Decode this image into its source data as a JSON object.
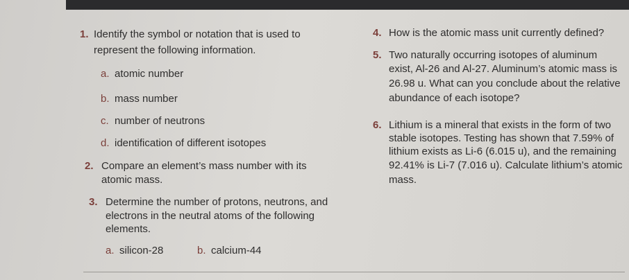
{
  "questions": [
    {
      "number": "1.",
      "lines": [
        "Identify the symbol or notation that is used to",
        "represent the following information."
      ],
      "items": [
        {
          "letter": "a.",
          "text": "atomic number"
        },
        {
          "letter": "b.",
          "text": "mass number"
        },
        {
          "letter": "c.",
          "text": "number of neutrons"
        },
        {
          "letter": "d.",
          "text": "identification of different isotopes"
        }
      ]
    },
    {
      "number": "2.",
      "lines": [
        "Compare an element’s mass number with its",
        "atomic mass."
      ]
    },
    {
      "number": "3.",
      "lines": [
        "Determine the number of protons, neutrons, and",
        "electrons in the neutral atoms of the following",
        "elements."
      ],
      "items": [
        {
          "letter": "a.",
          "text": "silicon-28"
        },
        {
          "letter": "b.",
          "text": "calcium-44"
        }
      ]
    },
    {
      "number": "4.",
      "lines": [
        "How is the atomic mass unit currently defined?"
      ]
    },
    {
      "number": "5.",
      "lines": [
        "Two naturally occurring isotopes of aluminum",
        "exist, Al-26 and Al-27. Aluminum’s atomic mass is",
        "26.98 u. What can you conclude about the relative",
        "abundance of each isotope?"
      ]
    },
    {
      "number": "6.",
      "lines": [
        "Lithium is a mineral that exists in the form of two",
        "stable isotopes. Testing has shown that 7.59% of",
        "lithium exists as Li-6 (6.015 u), and the remaining",
        "92.41% is Li-7 (7.016 u). Calculate lithium’s atomic",
        "mass."
      ]
    }
  ]
}
